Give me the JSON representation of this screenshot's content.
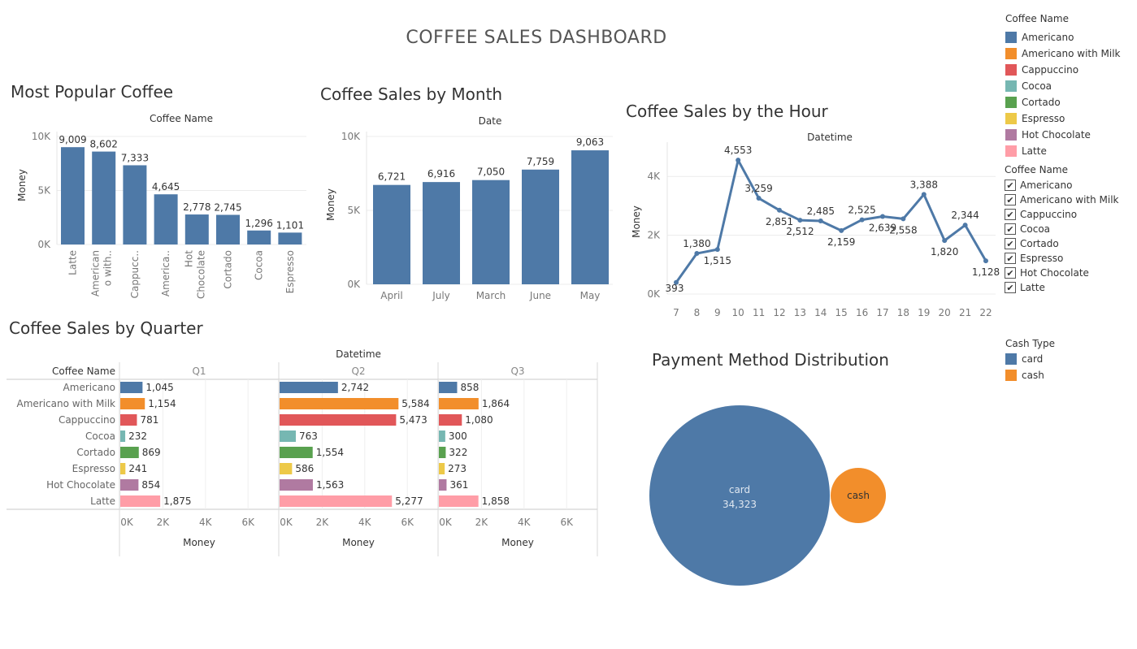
{
  "dashboard": {
    "title": "COFFEE SALES DASHBOARD",
    "sheet_titles": {
      "popular": "Most Popular Coffee",
      "month": "Coffee Sales by Month",
      "hour": "Coffee Sales by the Hour",
      "quarter": "Coffee Sales by Quarter",
      "payment": "Payment Method Distribution"
    }
  },
  "colors": {
    "Americano": "#4e79a7",
    "Americano with Milk": "#f28e2b",
    "Cappuccino": "#e15759",
    "Cocoa": "#76b7b2",
    "Cortado": "#59a14f",
    "Espresso": "#edc948",
    "Hot Chocolate": "#b07aa1",
    "Latte": "#ff9da7",
    "card": "#4e79a7",
    "cash": "#f28e2b",
    "bar": "#4e79a7",
    "line": "#4e79a7"
  },
  "legend_color": {
    "title": "Coffee Name",
    "items": [
      "Americano",
      "Americano with Milk",
      "Cappuccino",
      "Cocoa",
      "Cortado",
      "Espresso",
      "Hot Chocolate",
      "Latte"
    ]
  },
  "legend_filter": {
    "title": "Coffee Name",
    "items": [
      "Americano",
      "Americano with Milk",
      "Cappuccino",
      "Cocoa",
      "Cortado",
      "Espresso",
      "Hot Chocolate",
      "Latte"
    ],
    "checked": [
      true,
      true,
      true,
      true,
      true,
      true,
      true,
      true
    ]
  },
  "legend_cash": {
    "title": "Cash Type",
    "items": [
      "card",
      "cash"
    ]
  },
  "chart_data": [
    {
      "id": "popular",
      "type": "bar",
      "header": "Coffee Name",
      "ylabel": "Money",
      "ylim": [
        0,
        10000
      ],
      "yticks": [
        0,
        5000,
        10000
      ],
      "ytick_labels": [
        "0K",
        "5K",
        "10K"
      ],
      "categories": [
        "Latte",
        "Americano with Milk",
        "Cappuccino",
        "Americano",
        "Hot Chocolate",
        "Cortado",
        "Cocoa",
        "Espresso"
      ],
      "category_labels": [
        [
          "Latte"
        ],
        [
          "American",
          "o with.."
        ],
        [
          "Cappucc.."
        ],
        [
          "America.."
        ],
        [
          "Hot",
          "Chocolate"
        ],
        [
          "Cortado"
        ],
        [
          "Cocoa"
        ],
        [
          "Espresso"
        ]
      ],
      "values": [
        9009,
        8602,
        7333,
        4645,
        2778,
        2745,
        1296,
        1101
      ],
      "value_labels": [
        "9,009",
        "8,602",
        "7,333",
        "4,645",
        "2,778",
        "2,745",
        "1,296",
        "1,101"
      ]
    },
    {
      "id": "month",
      "type": "bar",
      "header": "Date",
      "ylabel": "Money",
      "ylim": [
        0,
        10000
      ],
      "yticks": [
        0,
        5000,
        10000
      ],
      "ytick_labels": [
        "0K",
        "5K",
        "10K"
      ],
      "categories": [
        "April",
        "July",
        "March",
        "June",
        "May"
      ],
      "values": [
        6721,
        6916,
        7050,
        7759,
        9063
      ],
      "value_labels": [
        "6,721",
        "6,916",
        "7,050",
        "7,759",
        "9,063"
      ]
    },
    {
      "id": "hour",
      "type": "line",
      "header": "Datetime",
      "ylabel": "Money",
      "ylim": [
        0,
        5000
      ],
      "yticks": [
        0,
        2000,
        4000
      ],
      "ytick_labels": [
        "0K",
        "2K",
        "4K"
      ],
      "x": [
        7,
        8,
        9,
        10,
        11,
        12,
        13,
        14,
        15,
        16,
        17,
        18,
        19,
        20,
        21,
        22
      ],
      "values": [
        393,
        1380,
        1515,
        4553,
        3259,
        2851,
        2512,
        2485,
        2159,
        2525,
        2639,
        2558,
        3388,
        1820,
        2344,
        1128
      ],
      "value_labels": [
        "393",
        "1,380",
        "1,515",
        "4,553",
        "3,259",
        "2,851",
        "2,512",
        "2,485",
        "2,159",
        "2,525",
        "2,639",
        "2,558",
        "3,388",
        "1,820",
        "2,344",
        "1,128"
      ],
      "label_pos": [
        "below",
        "above",
        "below",
        "above",
        "above",
        "below",
        "below",
        "above",
        "below",
        "above",
        "below",
        "below",
        "above",
        "below",
        "above",
        "below"
      ]
    },
    {
      "id": "quarter",
      "type": "bar",
      "orientation": "horizontal",
      "header": "Datetime",
      "row_header": "Coffee Name",
      "xlabel": "Money",
      "xlim": [
        0,
        8000
      ],
      "xticks": [
        0,
        2000,
        4000,
        6000
      ],
      "xtick_labels": [
        "0K",
        "2K",
        "4K",
        "6K"
      ],
      "categories": [
        "Americano",
        "Americano with Milk",
        "Cappuccino",
        "Cocoa",
        "Cortado",
        "Espresso",
        "Hot Chocolate",
        "Latte"
      ],
      "series": [
        {
          "name": "Q1",
          "values": [
            1045,
            1154,
            781,
            232,
            869,
            241,
            854,
            1875
          ],
          "value_labels": [
            "1,045",
            "1,154",
            "781",
            "232",
            "869",
            "241",
            "854",
            "1,875"
          ]
        },
        {
          "name": "Q2",
          "values": [
            2742,
            5584,
            5473,
            763,
            1554,
            586,
            1563,
            5277
          ],
          "value_labels": [
            "2,742",
            "5,584",
            "5,473",
            "763",
            "1,554",
            "586",
            "1,563",
            "5,277"
          ]
        },
        {
          "name": "Q3",
          "values": [
            858,
            1864,
            1080,
            300,
            322,
            273,
            361,
            1858
          ],
          "value_labels": [
            "858",
            "1,864",
            "1,080",
            "300",
            "322",
            "273",
            "361",
            "1,858"
          ]
        }
      ]
    },
    {
      "id": "payment",
      "type": "bubble",
      "categories": [
        "card",
        "cash"
      ],
      "values": [
        34323,
        3226
      ],
      "value_labels": [
        "34,323",
        ""
      ]
    }
  ]
}
